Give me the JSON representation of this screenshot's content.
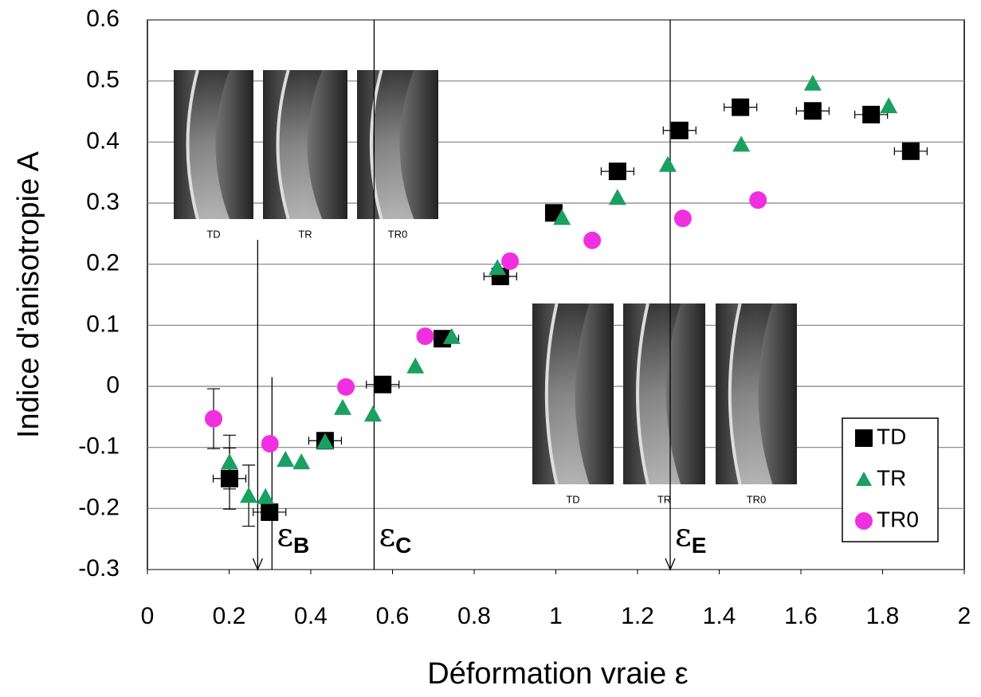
{
  "chart_data": {
    "type": "scatter",
    "x_label": "Déformation vraie ε",
    "y_label": "Indice d'anisotropie A",
    "xlim": [
      0,
      2
    ],
    "ylim": [
      -0.3,
      0.6
    ],
    "xticks": [
      0,
      0.2,
      0.4,
      0.6,
      0.8,
      1,
      1.2,
      1.4,
      1.6,
      1.8,
      2
    ],
    "yticks": [
      -0.3,
      -0.2,
      -0.1,
      0,
      0.1,
      0.2,
      0.3,
      0.4,
      0.5,
      0.6
    ],
    "grid": true,
    "legend": "lower right",
    "series": [
      {
        "name": "TD",
        "color": "#000000",
        "marker": "square",
        "x": [
          0.201,
          0.299,
          0.435,
          0.576,
          0.722,
          0.864,
          0.995,
          1.151,
          1.303,
          1.452,
          1.629,
          1.772,
          1.869
        ],
        "values": [
          -0.151,
          -0.206,
          -0.089,
          0.003,
          0.078,
          0.18,
          0.284,
          0.352,
          0.419,
          0.457,
          0.451,
          0.445,
          0.385
        ],
        "xerr": [
          0.04,
          0.04,
          0.04,
          0.04,
          0.04,
          0.04,
          null,
          0.04,
          0.04,
          0.04,
          0.04,
          0.04,
          0.04
        ],
        "yerr": [
          0.05,
          null,
          null,
          null,
          null,
          null,
          null,
          null,
          null,
          null,
          null,
          null,
          null
        ]
      },
      {
        "name": "TR",
        "color": "#1aa060",
        "marker": "triangle",
        "x": [
          0.201,
          0.248,
          0.289,
          0.338,
          0.377,
          0.435,
          0.478,
          0.552,
          0.656,
          0.745,
          0.857,
          1.015,
          1.151,
          1.274,
          1.454,
          1.629,
          1.815
        ],
        "values": [
          -0.124,
          -0.179,
          -0.181,
          -0.12,
          -0.124,
          -0.091,
          -0.035,
          -0.046,
          0.033,
          0.081,
          0.194,
          0.276,
          0.309,
          0.363,
          0.396,
          0.496,
          0.459
        ],
        "xerr": [
          null,
          null,
          null,
          null,
          null,
          null,
          null,
          null,
          null,
          null,
          null,
          null,
          null,
          null,
          null,
          null,
          null
        ],
        "yerr": [
          0.044,
          0.05,
          null,
          null,
          null,
          null,
          null,
          null,
          null,
          null,
          null,
          null,
          null,
          null,
          null,
          null,
          null
        ]
      },
      {
        "name": "TR0",
        "color": "#f030e0",
        "marker": "circle",
        "x": [
          0.162,
          0.3,
          0.486,
          0.68,
          0.888,
          1.089,
          1.311,
          1.495
        ],
        "values": [
          -0.053,
          -0.094,
          -0.001,
          0.082,
          0.205,
          0.239,
          0.275,
          0.305
        ],
        "xerr": [
          null,
          null,
          null,
          null,
          null,
          null,
          null,
          null
        ],
        "yerr": [
          0.049,
          null,
          null,
          null,
          null,
          null,
          null,
          null
        ]
      }
    ],
    "vlines": [
      {
        "x": 0.27,
        "y": 0.24,
        "arrow": true
      },
      {
        "x": 0.305,
        "y": 0.015,
        "label": "ε",
        "sub": "B"
      },
      {
        "x": 0.555,
        "label": "ε",
        "sub": "C"
      },
      {
        "x": 1.28,
        "arrow": true,
        "label": "ε",
        "sub": "E"
      }
    ],
    "insets": [
      {
        "labels": [
          "TD",
          "TR",
          "TR0"
        ]
      },
      {
        "labels": [
          "TD",
          "TR",
          "TR0"
        ]
      }
    ]
  }
}
